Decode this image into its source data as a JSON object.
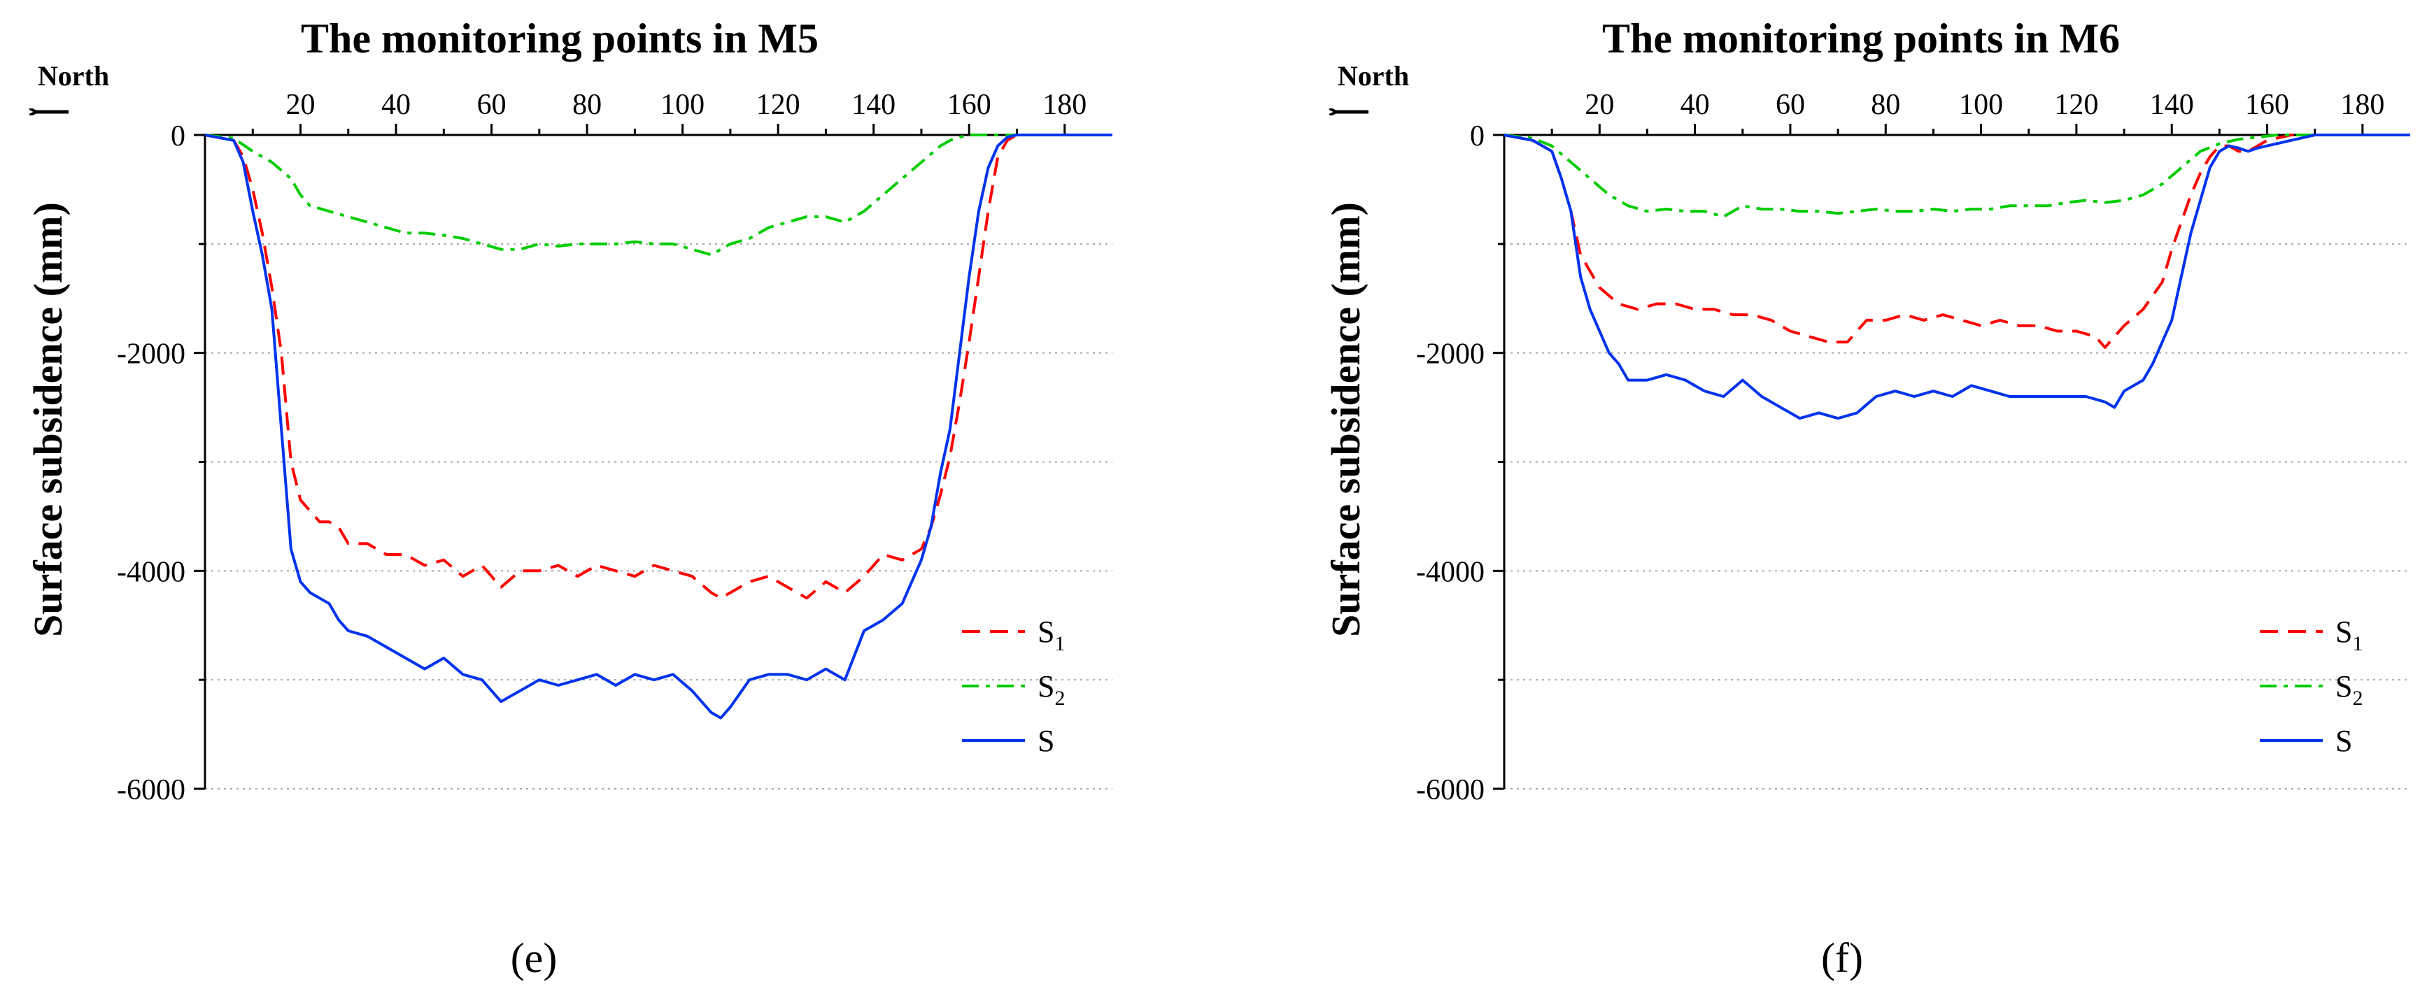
{
  "chart_data": [
    {
      "type": "line",
      "title": "The monitoring points in M5",
      "ylabel": "Surface subsidence (mm)",
      "xlabel": "",
      "direction_label": "North",
      "panel_label": "(e)",
      "xlim": [
        0,
        190
      ],
      "ylim": [
        -6000,
        0
      ],
      "xticks": [
        "20",
        "40",
        "60",
        "80",
        "100",
        "120",
        "140",
        "160",
        "180"
      ],
      "yticks": [
        "0",
        "-2000",
        "-4000",
        "-6000"
      ],
      "grid": "horizontal dotted",
      "legend_position": "bottom-right",
      "series": [
        {
          "name": "S1",
          "color": "#ff0000",
          "dash": "dashed",
          "x": [
            0,
            6,
            8,
            10,
            12,
            14,
            16,
            18,
            20,
            22,
            24,
            26,
            28,
            30,
            34,
            38,
            42,
            46,
            50,
            54,
            58,
            62,
            66,
            70,
            74,
            78,
            82,
            86,
            90,
            94,
            98,
            102,
            106,
            108,
            110,
            114,
            118,
            122,
            126,
            130,
            134,
            138,
            142,
            146,
            150,
            152,
            154,
            156,
            158,
            160,
            162,
            164,
            166,
            168,
            170,
            175,
            180,
            185,
            190
          ],
          "y": [
            0,
            -50,
            -200,
            -500,
            -900,
            -1400,
            -2000,
            -3000,
            -3350,
            -3450,
            -3550,
            -3550,
            -3600,
            -3750,
            -3750,
            -3850,
            -3850,
            -3950,
            -3900,
            -4050,
            -3950,
            -4150,
            -4000,
            -4000,
            -3950,
            -4050,
            -3950,
            -4000,
            -4050,
            -3950,
            -4000,
            -4050,
            -4200,
            -4250,
            -4200,
            -4100,
            -4050,
            -4150,
            -4250,
            -4100,
            -4200,
            -4050,
            -3850,
            -3900,
            -3800,
            -3600,
            -3300,
            -2950,
            -2450,
            -1900,
            -1300,
            -700,
            -200,
            -50,
            0,
            0,
            0,
            0,
            0
          ]
        },
        {
          "name": "S2",
          "color": "#00cc00",
          "dash": "dash-dot",
          "x": [
            0,
            6,
            10,
            14,
            18,
            20,
            22,
            26,
            30,
            34,
            38,
            42,
            46,
            50,
            54,
            58,
            62,
            66,
            70,
            74,
            78,
            82,
            86,
            90,
            94,
            98,
            102,
            106,
            110,
            114,
            118,
            122,
            126,
            130,
            134,
            138,
            142,
            146,
            150,
            154,
            156,
            158,
            160,
            162,
            165,
            170,
            175,
            180,
            185,
            190
          ],
          "y": [
            0,
            -30,
            -150,
            -250,
            -400,
            -550,
            -650,
            -700,
            -750,
            -800,
            -850,
            -900,
            -900,
            -920,
            -950,
            -1000,
            -1050,
            -1050,
            -1000,
            -1020,
            -1000,
            -1000,
            -1000,
            -980,
            -1000,
            -1000,
            -1050,
            -1100,
            -1000,
            -950,
            -850,
            -800,
            -750,
            -750,
            -800,
            -700,
            -550,
            -400,
            -250,
            -100,
            -50,
            -20,
            0,
            0,
            0,
            0,
            0,
            0,
            0,
            0
          ]
        },
        {
          "name": "S",
          "color": "#0033ee",
          "dash": "solid",
          "x": [
            0,
            6,
            8,
            10,
            12,
            14,
            16,
            18,
            20,
            22,
            24,
            26,
            28,
            30,
            34,
            38,
            42,
            46,
            50,
            54,
            58,
            62,
            66,
            70,
            74,
            78,
            82,
            86,
            90,
            94,
            98,
            102,
            106,
            108,
            110,
            114,
            118,
            122,
            126,
            130,
            134,
            138,
            142,
            146,
            150,
            152,
            154,
            156,
            158,
            160,
            162,
            164,
            166,
            168,
            170,
            175,
            180,
            185,
            190
          ],
          "y": [
            0,
            -50,
            -250,
            -700,
            -1100,
            -1600,
            -2700,
            -3800,
            -4100,
            -4200,
            -4250,
            -4300,
            -4450,
            -4550,
            -4600,
            -4700,
            -4800,
            -4900,
            -4800,
            -4950,
            -5000,
            -5200,
            -5100,
            -5000,
            -5050,
            -5000,
            -4950,
            -5050,
            -4950,
            -5000,
            -4950,
            -5100,
            -5300,
            -5350,
            -5250,
            -5000,
            -4950,
            -4950,
            -5000,
            -4900,
            -5000,
            -4550,
            -4450,
            -4300,
            -3900,
            -3600,
            -3100,
            -2700,
            -2000,
            -1300,
            -700,
            -300,
            -100,
            -20,
            0,
            0,
            0,
            0,
            0
          ]
        }
      ]
    },
    {
      "type": "line",
      "title": "The monitoring points in M6",
      "ylabel": "Surface subsidence (mm)",
      "xlabel": "",
      "direction_label": "North",
      "panel_label": "(f)",
      "xlim": [
        0,
        190
      ],
      "ylim": [
        -6000,
        0
      ],
      "xticks": [
        "20",
        "40",
        "60",
        "80",
        "100",
        "120",
        "140",
        "160",
        "180"
      ],
      "yticks": [
        "0",
        "-2000",
        "-4000",
        "-6000"
      ],
      "grid": "horizontal dotted",
      "legend_position": "bottom-right",
      "series": [
        {
          "name": "S1",
          "color": "#ff0000",
          "dash": "dashed",
          "x": [
            0,
            6,
            10,
            12,
            14,
            16,
            18,
            20,
            24,
            28,
            32,
            36,
            40,
            44,
            48,
            52,
            56,
            60,
            64,
            68,
            72,
            76,
            80,
            84,
            88,
            92,
            96,
            100,
            104,
            108,
            112,
            116,
            120,
            124,
            126,
            128,
            130,
            134,
            138,
            140,
            142,
            144,
            146,
            148,
            150,
            152,
            154,
            156,
            158,
            160,
            165,
            170,
            175,
            180,
            185,
            190
          ],
          "y": [
            0,
            -50,
            -150,
            -400,
            -700,
            -1100,
            -1250,
            -1400,
            -1550,
            -1600,
            -1550,
            -1550,
            -1600,
            -1600,
            -1650,
            -1650,
            -1700,
            -1800,
            -1850,
            -1900,
            -1900,
            -1700,
            -1700,
            -1650,
            -1700,
            -1650,
            -1700,
            -1750,
            -1700,
            -1750,
            -1750,
            -1800,
            -1800,
            -1850,
            -1950,
            -1850,
            -1750,
            -1600,
            -1350,
            -1050,
            -800,
            -550,
            -350,
            -200,
            -100,
            -100,
            -150,
            -150,
            -100,
            -50,
            0,
            0,
            0,
            0,
            0,
            0
          ]
        },
        {
          "name": "S2",
          "color": "#00cc00",
          "dash": "dash-dot",
          "x": [
            0,
            6,
            10,
            14,
            18,
            22,
            26,
            30,
            34,
            38,
            42,
            46,
            50,
            54,
            58,
            62,
            66,
            70,
            74,
            78,
            82,
            86,
            90,
            94,
            98,
            102,
            106,
            110,
            114,
            118,
            122,
            126,
            130,
            134,
            138,
            142,
            146,
            150,
            154,
            158,
            162,
            166,
            170,
            175,
            180,
            185,
            190
          ],
          "y": [
            0,
            -30,
            -100,
            -250,
            -400,
            -550,
            -650,
            -700,
            -680,
            -700,
            -700,
            -750,
            -650,
            -680,
            -680,
            -700,
            -700,
            -720,
            -700,
            -680,
            -700,
            -700,
            -680,
            -700,
            -680,
            -680,
            -650,
            -650,
            -650,
            -620,
            -600,
            -620,
            -600,
            -550,
            -450,
            -300,
            -150,
            -80,
            -40,
            -20,
            0,
            0,
            0,
            0,
            0,
            0,
            0
          ]
        },
        {
          "name": "S",
          "color": "#0033ee",
          "dash": "solid",
          "x": [
            0,
            6,
            10,
            12,
            14,
            16,
            18,
            20,
            22,
            24,
            26,
            28,
            30,
            34,
            38,
            42,
            46,
            50,
            54,
            58,
            62,
            66,
            70,
            74,
            78,
            82,
            86,
            90,
            94,
            98,
            102,
            106,
            110,
            114,
            118,
            122,
            126,
            128,
            130,
            132,
            134,
            136,
            138,
            140,
            142,
            144,
            146,
            148,
            150,
            152,
            154,
            156,
            158,
            160,
            165,
            170,
            175,
            180,
            185,
            190
          ],
          "y": [
            0,
            -50,
            -150,
            -400,
            -700,
            -1300,
            -1600,
            -1800,
            -2000,
            -2100,
            -2250,
            -2250,
            -2250,
            -2200,
            -2250,
            -2350,
            -2400,
            -2250,
            -2400,
            -2500,
            -2600,
            -2550,
            -2600,
            -2550,
            -2400,
            -2350,
            -2400,
            -2350,
            -2400,
            -2300,
            -2350,
            -2400,
            -2400,
            -2400,
            -2400,
            -2400,
            -2450,
            -2500,
            -2350,
            -2300,
            -2250,
            -2100,
            -1900,
            -1700,
            -1300,
            -900,
            -600,
            -300,
            -150,
            -100,
            -120,
            -150,
            -120,
            -100,
            -50,
            0,
            0,
            0,
            0,
            0
          ]
        }
      ]
    }
  ]
}
